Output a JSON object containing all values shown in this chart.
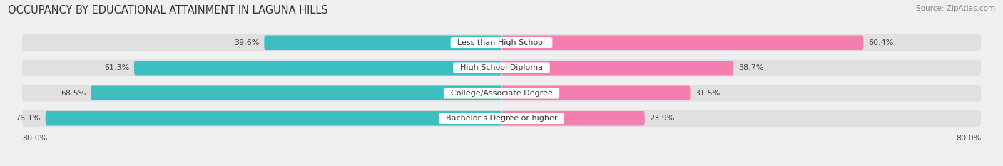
{
  "title": "OCCUPANCY BY EDUCATIONAL ATTAINMENT IN LAGUNA HILLS",
  "source": "Source: ZipAtlas.com",
  "categories": [
    "Less than High School",
    "High School Diploma",
    "College/Associate Degree",
    "Bachelor's Degree or higher"
  ],
  "owner_values": [
    39.6,
    61.3,
    68.5,
    76.1
  ],
  "renter_values": [
    60.4,
    38.7,
    31.5,
    23.9
  ],
  "owner_color": "#3DBFBF",
  "renter_color": "#F47EB0",
  "bg_color": "#efefef",
  "row_bg_color": "#e0e0e0",
  "title_fontsize": 10.5,
  "source_fontsize": 7.5,
  "value_fontsize": 8,
  "cat_fontsize": 8,
  "axis_max": 80.0,
  "axis_label": "80.0%",
  "left_axis_label": "80.0%"
}
